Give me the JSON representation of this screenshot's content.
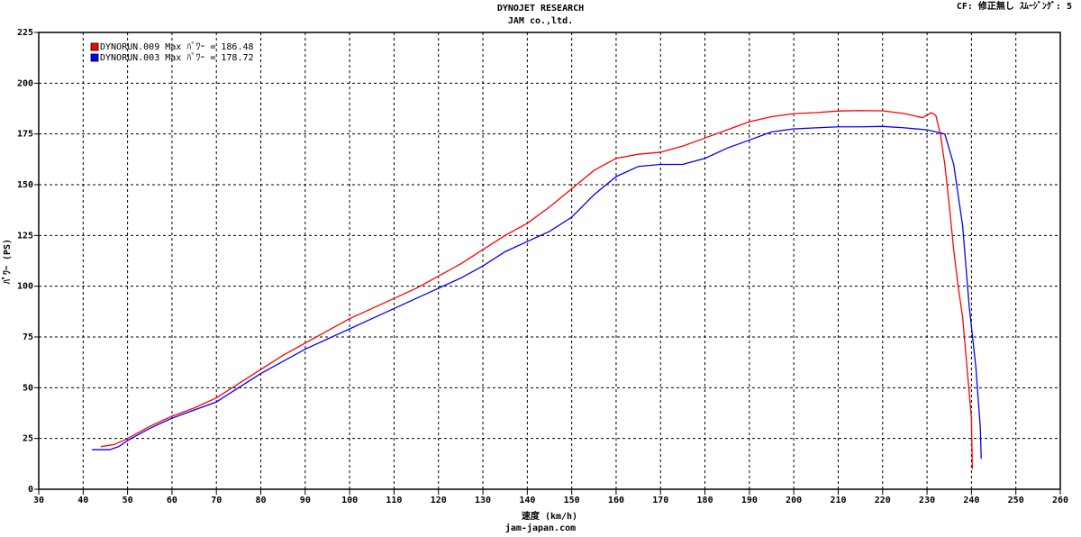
{
  "header": {
    "title": "DYNOJET  RESEARCH",
    "subtitle": "JAM co.,ltd.",
    "settings": "CF: 修正無し  ｽﾑｰｼﾞﾝｸﾞ: 5"
  },
  "footer": "jam-japan.com",
  "chart_data": {
    "type": "line",
    "xlabel": "速度 (km/h)",
    "ylabel": "ﾊﾟﾜｰ (PS)",
    "xlim": [
      30,
      260
    ],
    "xticks": [
      30,
      40,
      50,
      60,
      70,
      80,
      90,
      100,
      110,
      120,
      130,
      140,
      150,
      160,
      170,
      180,
      190,
      200,
      210,
      220,
      230,
      240,
      250,
      260
    ],
    "ylim": [
      0,
      225
    ],
    "yticks": [
      0,
      25,
      50,
      75,
      100,
      125,
      150,
      175,
      200,
      225
    ],
    "grid": true,
    "legend": "top-left",
    "series": [
      {
        "name": "DYNORUN.009 Max ﾊﾟﾜｰ = 186.48",
        "color": "#ff0000",
        "x": [
          44,
          47,
          50,
          55,
          60,
          65,
          70,
          75,
          80,
          85,
          90,
          95,
          100,
          105,
          110,
          115,
          120,
          125,
          130,
          135,
          140,
          145,
          150,
          155,
          160,
          165,
          170,
          175,
          180,
          185,
          190,
          195,
          200,
          205,
          210,
          215,
          220,
          225,
          229,
          231,
          232,
          233,
          234,
          235,
          236,
          237,
          238,
          239,
          240,
          240.2
        ],
        "values": [
          21,
          22,
          25,
          31,
          36,
          40,
          45,
          52,
          59,
          66,
          72,
          78,
          84,
          89,
          94,
          99,
          105,
          111,
          118,
          125,
          131,
          139,
          148,
          157,
          163,
          165,
          166,
          169,
          173,
          177,
          181,
          183.5,
          185,
          185.5,
          186.3,
          186.5,
          186.4,
          185,
          183,
          185.5,
          184,
          175,
          160,
          140,
          118,
          100,
          85,
          60,
          35,
          10
        ]
      },
      {
        "name": "DYNORUN.003 Max ﾊﾟﾜｰ = 178.72",
        "color": "#0000ff",
        "x": [
          42,
          46,
          48,
          50,
          55,
          60,
          65,
          70,
          75,
          80,
          85,
          90,
          95,
          100,
          105,
          110,
          115,
          120,
          125,
          130,
          135,
          140,
          145,
          150,
          155,
          160,
          165,
          170,
          175,
          180,
          185,
          190,
          195,
          200,
          205,
          210,
          215,
          220,
          225,
          230,
          234,
          236,
          238,
          239.5,
          241,
          242,
          242.2
        ],
        "values": [
          19.5,
          19.5,
          21,
          24,
          30,
          35,
          39,
          43,
          50,
          57,
          63,
          69,
          74,
          79,
          84,
          89,
          94,
          99,
          104,
          110,
          117,
          122,
          127,
          134,
          145,
          154,
          159,
          160,
          160,
          163,
          168,
          172,
          176,
          177.5,
          178,
          178.5,
          178.5,
          178.7,
          178,
          177,
          175,
          160,
          130,
          90,
          60,
          30,
          15
        ]
      }
    ]
  }
}
